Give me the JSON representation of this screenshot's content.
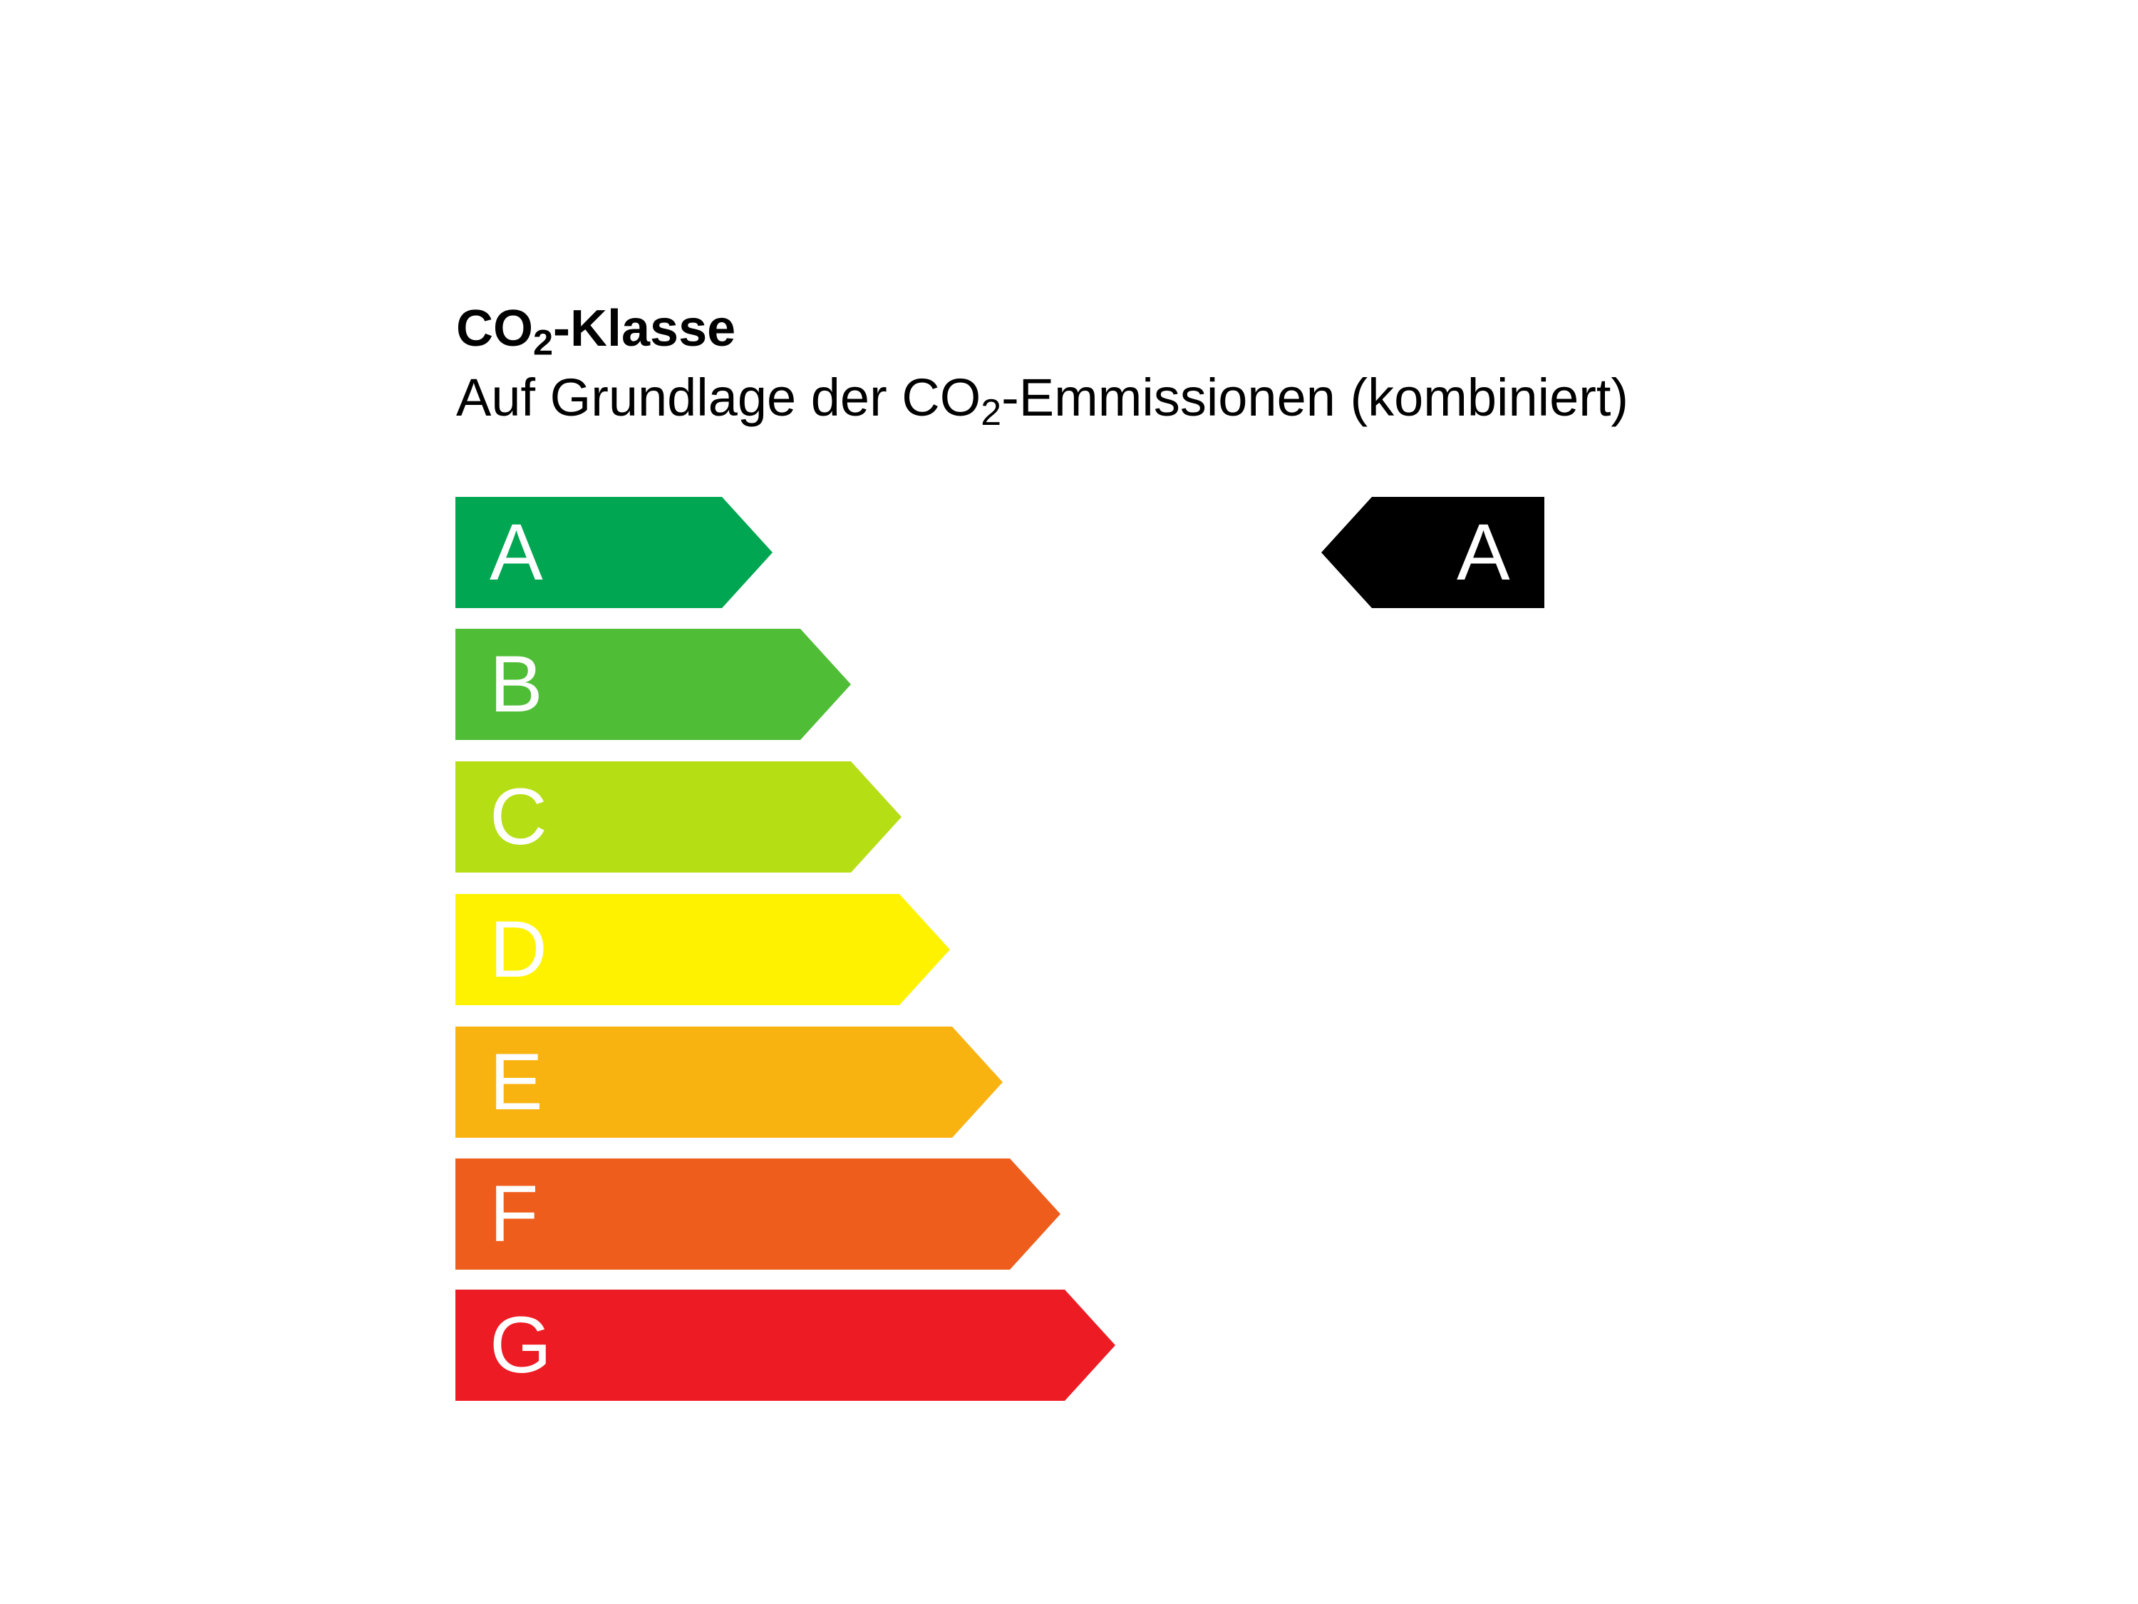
{
  "title": {
    "prefix": "CO",
    "sub": "2",
    "suffix": "-Klasse"
  },
  "subtitle": {
    "prefix": "Auf Grundlage der CO",
    "sub": "2",
    "suffix": "-Emmissionen (kombiniert)"
  },
  "classes": [
    {
      "letter": "A",
      "color": "#00a651"
    },
    {
      "letter": "B",
      "color": "#50bd37"
    },
    {
      "letter": "C",
      "color": "#b6de14"
    },
    {
      "letter": "D",
      "color": "#fff200"
    },
    {
      "letter": "E",
      "color": "#f9b311"
    },
    {
      "letter": "F",
      "color": "#ef5d1c"
    },
    {
      "letter": "G",
      "color": "#ed1c24"
    }
  ],
  "rating": {
    "letter": "A",
    "color": "#000000"
  }
}
